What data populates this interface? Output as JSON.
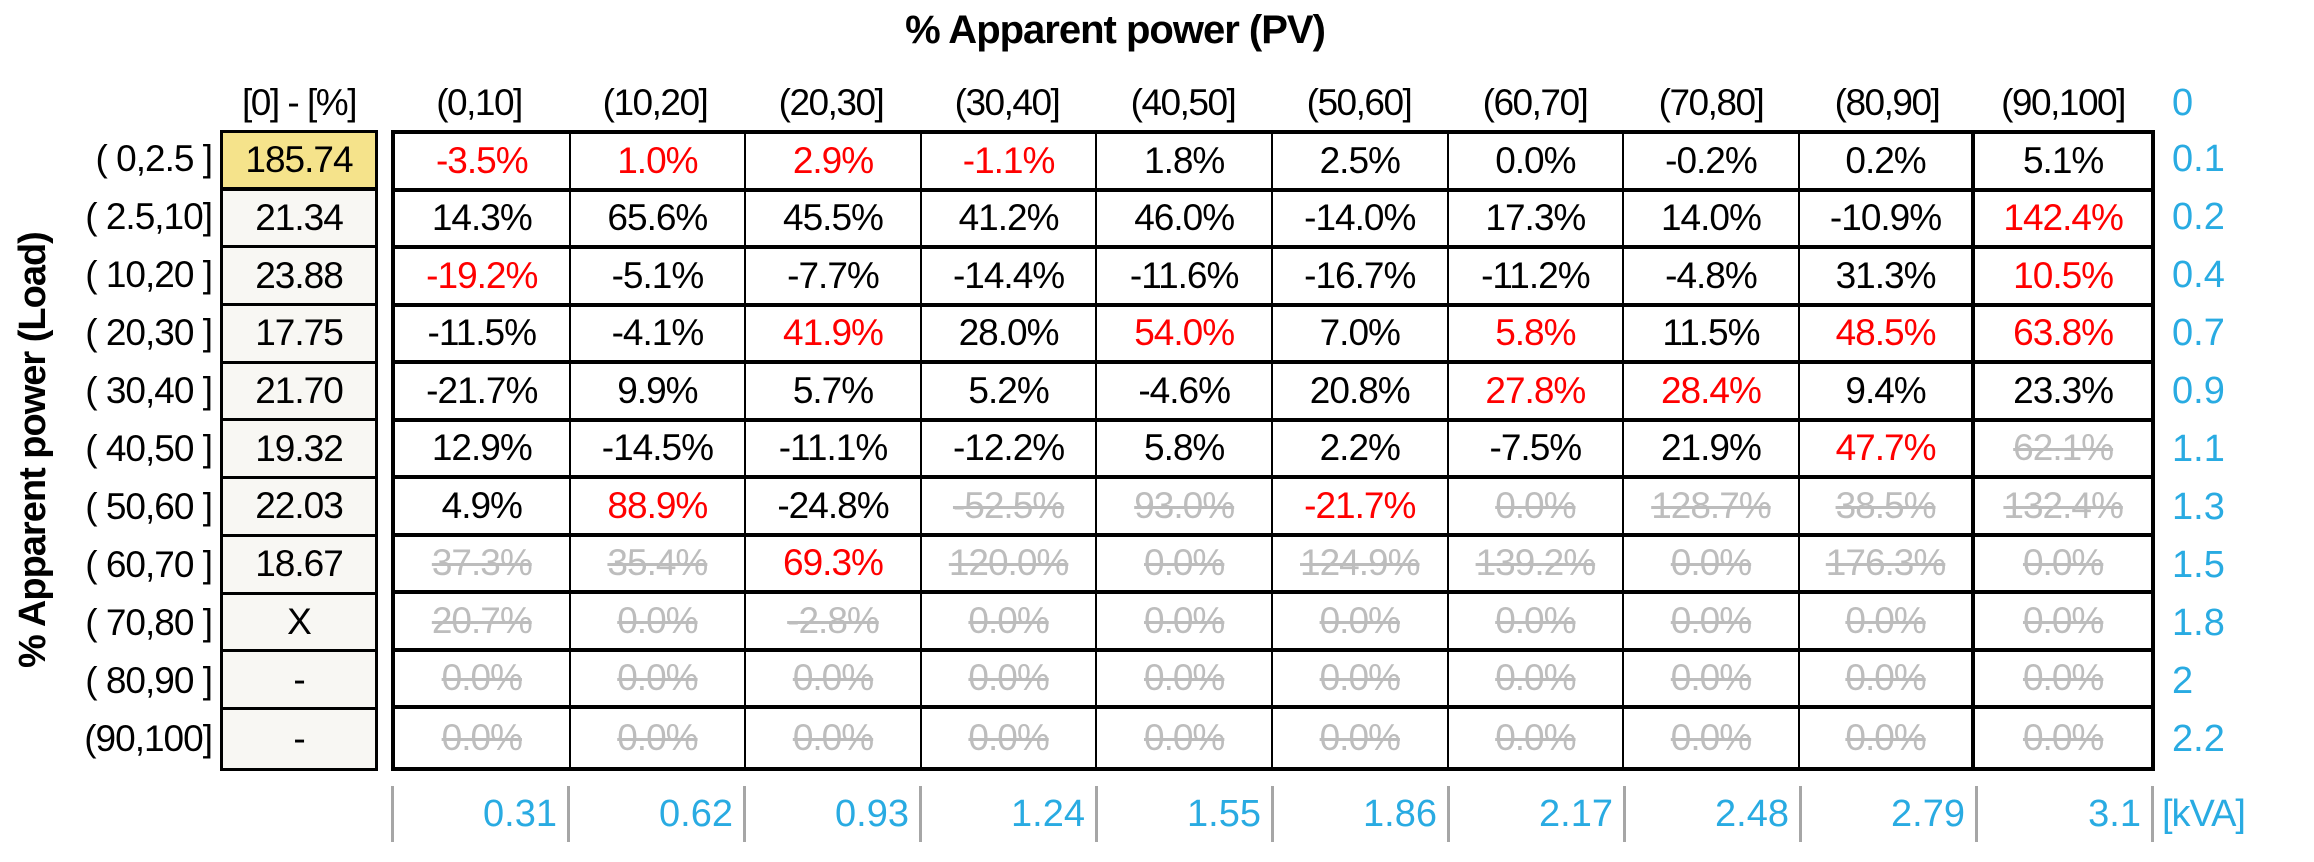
{
  "chart_data": {
    "type": "table",
    "title": "% Apparent power (PV)",
    "ylabel": "% Apparent power (Load)",
    "col0_header": "[0] - [%]",
    "pv_bins": [
      "(0,10]",
      "(10,20]",
      "(20,30]",
      "(30,40]",
      "(40,50]",
      "(50,60]",
      "(60,70]",
      "(70,80]",
      "(80,90]",
      "(90,100]"
    ],
    "right_axis_header": "0",
    "legend": {
      "black_means": "plain value",
      "red_means": "highlighted value",
      "gray_means": "struck-through (discarded) value",
      "colors": {
        "red": "#ff0000",
        "gray": "#bdbdbd",
        "cyan": "#29abe2",
        "yellow_highlight": "#f5e38b",
        "tick_gray": "#a6a6a6"
      }
    },
    "rows": [
      {
        "label": "( 0,2.5 ]",
        "base": "185.74",
        "base_highlight": true,
        "right_axis": "0.1",
        "cells": [
          {
            "v": "-3.5%",
            "c": "red"
          },
          {
            "v": "1.0%",
            "c": "red"
          },
          {
            "v": "2.9%",
            "c": "red"
          },
          {
            "v": "-1.1%",
            "c": "red"
          },
          {
            "v": "1.8%",
            "c": "black"
          },
          {
            "v": "2.5%",
            "c": "black"
          },
          {
            "v": "0.0%",
            "c": "black"
          },
          {
            "v": "-0.2%",
            "c": "black"
          },
          {
            "v": "0.2%",
            "c": "black"
          },
          {
            "v": "5.1%",
            "c": "black"
          }
        ]
      },
      {
        "label": "( 2.5,10]",
        "base": "21.34",
        "base_highlight": false,
        "right_axis": "0.2",
        "cells": [
          {
            "v": "14.3%",
            "c": "black"
          },
          {
            "v": "65.6%",
            "c": "black"
          },
          {
            "v": "45.5%",
            "c": "black"
          },
          {
            "v": "41.2%",
            "c": "black"
          },
          {
            "v": "46.0%",
            "c": "black"
          },
          {
            "v": "-14.0%",
            "c": "black"
          },
          {
            "v": "17.3%",
            "c": "black"
          },
          {
            "v": "14.0%",
            "c": "black"
          },
          {
            "v": "-10.9%",
            "c": "black"
          },
          {
            "v": "142.4%",
            "c": "red"
          }
        ]
      },
      {
        "label": "( 10,20 ]",
        "base": "23.88",
        "base_highlight": false,
        "right_axis": "0.4",
        "cells": [
          {
            "v": "-19.2%",
            "c": "red"
          },
          {
            "v": "-5.1%",
            "c": "black"
          },
          {
            "v": "-7.7%",
            "c": "black"
          },
          {
            "v": "-14.4%",
            "c": "black"
          },
          {
            "v": "-11.6%",
            "c": "black"
          },
          {
            "v": "-16.7%",
            "c": "black"
          },
          {
            "v": "-11.2%",
            "c": "black"
          },
          {
            "v": "-4.8%",
            "c": "black"
          },
          {
            "v": "31.3%",
            "c": "black"
          },
          {
            "v": "10.5%",
            "c": "red"
          }
        ]
      },
      {
        "label": "( 20,30 ]",
        "base": "17.75",
        "base_highlight": false,
        "right_axis": "0.7",
        "cells": [
          {
            "v": "-11.5%",
            "c": "black"
          },
          {
            "v": "-4.1%",
            "c": "black"
          },
          {
            "v": "41.9%",
            "c": "red"
          },
          {
            "v": "28.0%",
            "c": "black"
          },
          {
            "v": "54.0%",
            "c": "red"
          },
          {
            "v": "7.0%",
            "c": "black"
          },
          {
            "v": "5.8%",
            "c": "red"
          },
          {
            "v": "11.5%",
            "c": "black"
          },
          {
            "v": "48.5%",
            "c": "red"
          },
          {
            "v": "63.8%",
            "c": "red"
          }
        ]
      },
      {
        "label": "( 30,40 ]",
        "base": "21.70",
        "base_highlight": false,
        "right_axis": "0.9",
        "cells": [
          {
            "v": "-21.7%",
            "c": "black"
          },
          {
            "v": "9.9%",
            "c": "black"
          },
          {
            "v": "5.7%",
            "c": "black"
          },
          {
            "v": "5.2%",
            "c": "black"
          },
          {
            "v": "-4.6%",
            "c": "black"
          },
          {
            "v": "20.8%",
            "c": "black"
          },
          {
            "v": "27.8%",
            "c": "red"
          },
          {
            "v": "28.4%",
            "c": "red"
          },
          {
            "v": "9.4%",
            "c": "black"
          },
          {
            "v": "23.3%",
            "c": "black"
          }
        ]
      },
      {
        "label": "( 40,50 ]",
        "base": "19.32",
        "base_highlight": false,
        "right_axis": "1.1",
        "cells": [
          {
            "v": "12.9%",
            "c": "black"
          },
          {
            "v": "-14.5%",
            "c": "black"
          },
          {
            "v": "-11.1%",
            "c": "black"
          },
          {
            "v": "-12.2%",
            "c": "black"
          },
          {
            "v": "5.8%",
            "c": "black"
          },
          {
            "v": "2.2%",
            "c": "black"
          },
          {
            "v": "-7.5%",
            "c": "black"
          },
          {
            "v": "21.9%",
            "c": "black"
          },
          {
            "v": "47.7%",
            "c": "red"
          },
          {
            "v": "62.1%",
            "c": "gray"
          }
        ]
      },
      {
        "label": "( 50,60 ]",
        "base": "22.03",
        "base_highlight": false,
        "right_axis": "1.3",
        "cells": [
          {
            "v": "4.9%",
            "c": "black"
          },
          {
            "v": "88.9%",
            "c": "red"
          },
          {
            "v": "-24.8%",
            "c": "black"
          },
          {
            "v": "-52.5%",
            "c": "gray"
          },
          {
            "v": "93.0%",
            "c": "gray"
          },
          {
            "v": "-21.7%",
            "c": "red"
          },
          {
            "v": "0.0%",
            "c": "gray"
          },
          {
            "v": "128.7%",
            "c": "gray"
          },
          {
            "v": "38.5%",
            "c": "gray"
          },
          {
            "v": "132.4%",
            "c": "gray"
          }
        ]
      },
      {
        "label": "( 60,70 ]",
        "base": "18.67",
        "base_highlight": false,
        "right_axis": "1.5",
        "cells": [
          {
            "v": "37.3%",
            "c": "gray"
          },
          {
            "v": "35.4%",
            "c": "gray"
          },
          {
            "v": "69.3%",
            "c": "red"
          },
          {
            "v": "120.0%",
            "c": "gray"
          },
          {
            "v": "0.0%",
            "c": "gray"
          },
          {
            "v": "124.9%",
            "c": "gray"
          },
          {
            "v": "139.2%",
            "c": "gray"
          },
          {
            "v": "0.0%",
            "c": "gray"
          },
          {
            "v": "176.3%",
            "c": "gray"
          },
          {
            "v": "0.0%",
            "c": "gray"
          }
        ]
      },
      {
        "label": "( 70,80 ]",
        "base": "X",
        "base_highlight": false,
        "right_axis": "1.8",
        "cells": [
          {
            "v": "20.7%",
            "c": "gray"
          },
          {
            "v": "0.0%",
            "c": "gray"
          },
          {
            "v": "-2.8%",
            "c": "gray"
          },
          {
            "v": "0.0%",
            "c": "gray"
          },
          {
            "v": "0.0%",
            "c": "gray"
          },
          {
            "v": "0.0%",
            "c": "gray"
          },
          {
            "v": "0.0%",
            "c": "gray"
          },
          {
            "v": "0.0%",
            "c": "gray"
          },
          {
            "v": "0.0%",
            "c": "gray"
          },
          {
            "v": "0.0%",
            "c": "gray"
          }
        ]
      },
      {
        "label": "( 80,90 ]",
        "base": "-",
        "base_highlight": false,
        "right_axis": "2",
        "cells": [
          {
            "v": "0.0%",
            "c": "gray"
          },
          {
            "v": "0.0%",
            "c": "gray"
          },
          {
            "v": "0.0%",
            "c": "gray"
          },
          {
            "v": "0.0%",
            "c": "gray"
          },
          {
            "v": "0.0%",
            "c": "gray"
          },
          {
            "v": "0.0%",
            "c": "gray"
          },
          {
            "v": "0.0%",
            "c": "gray"
          },
          {
            "v": "0.0%",
            "c": "gray"
          },
          {
            "v": "0.0%",
            "c": "gray"
          },
          {
            "v": "0.0%",
            "c": "gray"
          }
        ]
      },
      {
        "label": "(90,100]",
        "base": "-",
        "base_highlight": false,
        "right_axis": "2.2",
        "cells": [
          {
            "v": "0.0%",
            "c": "gray"
          },
          {
            "v": "0.0%",
            "c": "gray"
          },
          {
            "v": "0.0%",
            "c": "gray"
          },
          {
            "v": "0.0%",
            "c": "gray"
          },
          {
            "v": "0.0%",
            "c": "gray"
          },
          {
            "v": "0.0%",
            "c": "gray"
          },
          {
            "v": "0.0%",
            "c": "gray"
          },
          {
            "v": "0.0%",
            "c": "gray"
          },
          {
            "v": "0.0%",
            "c": "gray"
          },
          {
            "v": "0.0%",
            "c": "gray"
          }
        ]
      }
    ],
    "bottom_axis": {
      "ticks": [
        "0.31",
        "0.62",
        "0.93",
        "1.24",
        "1.55",
        "1.86",
        "2.17",
        "2.48",
        "2.79",
        "3.1"
      ],
      "unit": "[kVA]"
    }
  }
}
